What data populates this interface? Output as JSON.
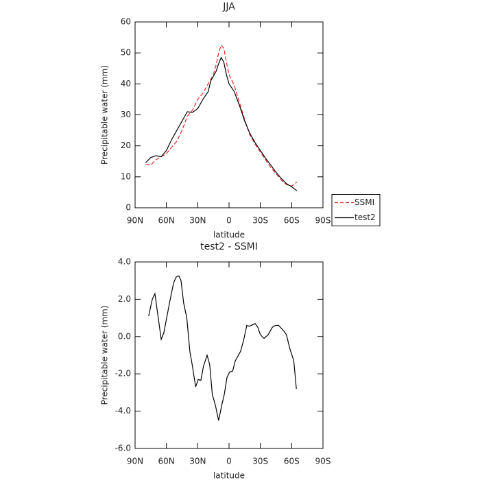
{
  "chart_data": [
    {
      "type": "line",
      "title": "JJA",
      "xlabel": "latitude",
      "ylabel": "Precipitable water (mm)",
      "x": [
        80,
        75,
        70,
        65,
        60,
        55,
        50,
        45,
        40,
        35,
        30,
        25,
        20,
        17.5,
        15,
        12.5,
        10,
        7.5,
        5,
        2.5,
        0,
        -5,
        -10,
        -15,
        -20,
        -25,
        -30,
        -35,
        -40,
        -45,
        -50,
        -55,
        -60,
        -65
      ],
      "series": [
        {
          "name": "SSMI",
          "color": "#e8251f",
          "dash": true,
          "values": [
            14,
            13.8,
            15.5,
            16.5,
            17.5,
            19.5,
            21.5,
            25,
            29.5,
            31.5,
            35,
            37,
            40,
            41.5,
            43,
            46,
            50,
            52.5,
            51.5,
            47,
            43,
            39.5,
            34,
            28.5,
            23.5,
            20.5,
            18,
            15.5,
            13,
            11,
            9,
            7.5,
            7,
            8.3
          ]
        },
        {
          "name": "test2",
          "color": "#000000",
          "dash": false,
          "values": [
            14.5,
            16.2,
            16.8,
            16.5,
            18.5,
            22,
            25,
            28,
            31,
            30.8,
            32,
            35,
            37.5,
            41,
            42.5,
            44,
            46.5,
            48.5,
            47,
            43,
            40,
            37.5,
            33,
            28,
            24,
            21,
            18.5,
            16,
            13.8,
            11.5,
            9.5,
            7.8,
            6.8,
            5.5
          ]
        }
      ],
      "xlim": [
        90,
        -90
      ],
      "xticks": [
        {
          "value": 90,
          "label": "90N"
        },
        {
          "value": 60,
          "label": "60N"
        },
        {
          "value": 30,
          "label": "30N"
        },
        0,
        {
          "value": -30,
          "label": "30S"
        },
        {
          "value": -60,
          "label": "60S"
        },
        {
          "value": -90,
          "label": "90S"
        }
      ],
      "ylim": [
        0,
        60
      ],
      "yticks": [
        0,
        10,
        20,
        30,
        40,
        50,
        60
      ],
      "legend": "right"
    },
    {
      "type": "line",
      "title": "test2 - SSMI",
      "xlabel": "latitude",
      "ylabel": "Precipitable water (mm)",
      "x": [
        77,
        73.5,
        71,
        65,
        62.5,
        57,
        53,
        50.5,
        48,
        46,
        43.5,
        40.5,
        37.5,
        35,
        32,
        29.5,
        27,
        24.5,
        21,
        18.5,
        16,
        13,
        10,
        7,
        4.5,
        2,
        -0.5,
        -3.5,
        -6,
        -11,
        -14,
        -17,
        -19.5,
        -25,
        -27.5,
        -30,
        -33.5,
        -37.5,
        -41.5,
        -44.5,
        -47.5,
        -52.5,
        -55,
        -58,
        -62,
        -64.5
      ],
      "values": [
        1.1,
        2.0,
        2.3,
        -0.15,
        0.2,
        1.8,
        2.9,
        3.2,
        3.25,
        3.0,
        1.8,
        1.0,
        -0.8,
        -1.6,
        -2.7,
        -2.3,
        -2.35,
        -1.6,
        -1.0,
        -1.5,
        -3.1,
        -3.7,
        -4.5,
        -3.7,
        -3.1,
        -2.2,
        -1.9,
        -1.85,
        -1.3,
        -0.8,
        -0.2,
        0.6,
        0.55,
        0.7,
        0.5,
        0.1,
        -0.1,
        0.1,
        0.5,
        0.6,
        0.6,
        0.3,
        0.1,
        -0.6,
        -1.3,
        -2.8
      ],
      "color": "#000000",
      "xlim": [
        90,
        -90
      ],
      "xticks": [
        {
          "value": 90,
          "label": "90N"
        },
        {
          "value": 60,
          "label": "60N"
        },
        {
          "value": 30,
          "label": "30N"
        },
        0,
        {
          "value": -30,
          "label": "30S"
        },
        {
          "value": -60,
          "label": "60S"
        },
        {
          "value": -90,
          "label": "90S"
        }
      ],
      "ylim": [
        -6,
        4
      ],
      "yticks": [
        {
          "value": -6,
          "label": "-6.0"
        },
        {
          "value": -4,
          "label": "-4.0"
        },
        {
          "value": -2,
          "label": "-2.0"
        },
        {
          "value": 0,
          "label": "0.0"
        },
        {
          "value": 2,
          "label": "2.0"
        },
        {
          "value": 4,
          "label": "4.0"
        }
      ]
    }
  ]
}
